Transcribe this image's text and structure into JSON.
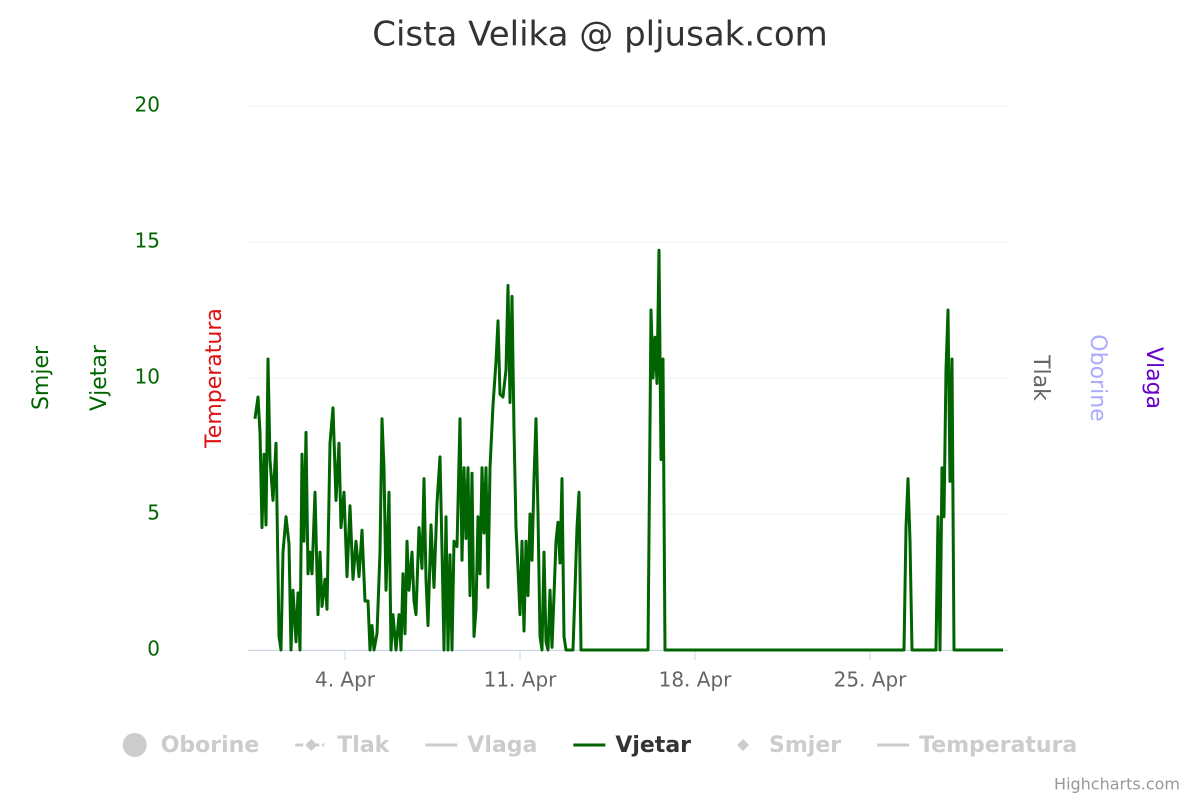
{
  "chart_data": {
    "type": "line",
    "title": "Cista Velika @ pljusak.com",
    "credits": "Highcharts.com",
    "axis_titles": [
      {
        "text": "Smjer",
        "color": "#006400",
        "side": "left"
      },
      {
        "text": "Vjetar",
        "color": "#006400",
        "side": "left"
      },
      {
        "text": "Temperatura",
        "color": "#dd1111",
        "side": "left"
      },
      {
        "text": "Tlak",
        "color": "#666666",
        "side": "right"
      },
      {
        "text": "Oborine",
        "color": "#aaaaff",
        "side": "right"
      },
      {
        "text": "Vlaga",
        "color": "#6600cc",
        "side": "right"
      }
    ],
    "x": [
      0.4,
      0.52,
      0.6,
      0.68,
      0.76,
      0.84,
      0.92,
      1.0,
      1.12,
      1.24,
      1.36,
      1.44,
      1.52,
      1.64,
      1.76,
      1.84,
      1.92,
      2.04,
      2.12,
      2.2,
      2.28,
      2.36,
      2.44,
      2.52,
      2.6,
      2.68,
      2.8,
      2.92,
      3.0,
      3.08,
      3.2,
      3.28,
      3.4,
      3.52,
      3.64,
      3.76,
      3.84,
      3.96,
      4.08,
      4.2,
      4.32,
      4.44,
      4.56,
      4.68,
      4.8,
      4.92,
      5.0,
      5.08,
      5.16,
      5.28,
      5.4,
      5.48,
      5.56,
      5.64,
      5.76,
      5.84,
      5.92,
      6.04,
      6.16,
      6.24,
      6.32,
      6.4,
      6.48,
      6.56,
      6.68,
      6.76,
      6.84,
      6.96,
      7.08,
      7.16,
      7.24,
      7.32,
      7.44,
      7.56,
      7.68,
      7.8,
      7.88,
      7.96,
      8.04,
      8.12,
      8.2,
      8.28,
      8.36,
      8.48,
      8.6,
      8.68,
      8.76,
      8.84,
      8.92,
      9.0,
      9.08,
      9.16,
      9.24,
      9.32,
      9.4,
      9.48,
      9.56,
      9.64,
      9.72,
      9.8,
      9.92,
      10.04,
      10.12,
      10.2,
      10.32,
      10.44,
      10.52,
      10.6,
      10.68,
      10.76,
      10.84,
      10.92,
      11.0,
      11.08,
      11.16,
      11.24,
      11.32,
      11.4,
      11.48,
      11.56,
      11.64,
      11.72,
      11.8,
      11.88,
      11.96,
      12.04,
      12.12,
      12.2,
      12.28,
      12.36,
      12.44,
      12.52,
      12.6,
      12.68,
      12.76,
      12.84,
      12.92,
      13.12,
      13.2,
      13.28,
      13.36,
      13.44,
      13.52,
      16.12,
      16.24,
      16.32,
      16.4,
      16.48,
      16.56,
      16.64,
      16.72,
      16.8,
      16.88,
      26.36,
      26.44,
      26.52,
      26.6,
      26.68,
      26.76,
      27.64,
      27.72,
      27.8,
      27.88,
      27.96,
      28.04,
      28.12,
      28.2,
      28.28,
      28.36,
      30.32
    ],
    "series": [
      {
        "name": "Oborine",
        "color": "#cccccc",
        "visible": false,
        "legend_symbol": "circle"
      },
      {
        "name": "Tlak",
        "color": "#cccccc",
        "visible": false,
        "legend_symbol": "dashdot-diamond"
      },
      {
        "name": "Vlaga",
        "color": "#cccccc",
        "visible": false,
        "legend_symbol": "line"
      },
      {
        "name": "Vjetar",
        "color": "#006400",
        "visible": true,
        "legend_symbol": "line",
        "values": [
          8.5,
          9.3,
          8,
          4.5,
          7.2,
          4.6,
          10.7,
          7,
          5.5,
          7.6,
          0.5,
          0,
          3.6,
          4.9,
          3.9,
          0,
          2.2,
          0.3,
          2.1,
          0,
          7.2,
          4,
          8,
          2.8,
          3.6,
          2.8,
          5.8,
          1.3,
          3.6,
          1.6,
          2.6,
          1.5,
          7.6,
          8.9,
          5.5,
          7.6,
          4.5,
          5.8,
          2.7,
          5.3,
          2.6,
          4,
          2.7,
          4.4,
          1.8,
          1.8,
          0,
          0.9,
          0,
          0.6,
          3.6,
          8.5,
          6.7,
          2.2,
          5.8,
          0,
          1.3,
          0,
          1.3,
          0,
          2.8,
          0.6,
          4,
          2.2,
          3.6,
          1.8,
          1.3,
          4.5,
          3,
          6.3,
          2.6,
          0.9,
          4.6,
          2.3,
          5.4,
          7.1,
          3.7,
          0,
          4.9,
          0,
          3.5,
          0,
          4,
          3.8,
          8.5,
          3.3,
          6.7,
          4.1,
          6.7,
          2,
          6.5,
          0.5,
          1.5,
          4.9,
          2.8,
          6.7,
          4.3,
          6.7,
          2.3,
          6.7,
          9,
          10.6,
          12.1,
          9.4,
          9.3,
          10.3,
          13.4,
          9.1,
          13,
          8.1,
          4.5,
          3,
          1.3,
          4,
          0.7,
          4,
          2,
          5,
          3.3,
          6.3,
          8.5,
          5,
          0.5,
          0,
          3.6,
          0.3,
          0,
          2.2,
          0.1,
          2,
          4,
          4.7,
          3.2,
          6.3,
          0.5,
          0,
          0,
          0,
          2.2,
          4.5,
          5.8,
          0,
          0,
          0,
          12.5,
          10,
          11.5,
          9.8,
          14.7,
          7,
          10.7,
          0,
          0,
          0,
          4.5,
          6.3,
          4,
          0,
          0,
          0,
          4.9,
          0,
          6.7,
          4.9,
          10.3,
          12.5,
          6.2,
          10.7,
          0,
          0
        ]
      },
      {
        "name": "Smjer",
        "color": "#cccccc",
        "visible": false,
        "legend_symbol": "diamond"
      },
      {
        "name": "Temperatura",
        "color": "#cccccc",
        "visible": false,
        "legend_symbol": "line"
      }
    ],
    "xlim": [
      0.12,
      30.52
    ],
    "xticks": [
      {
        "value": 4,
        "label": "4. Apr"
      },
      {
        "value": 11,
        "label": "11. Apr"
      },
      {
        "value": 18,
        "label": "18. Apr"
      },
      {
        "value": 25,
        "label": "25. Apr"
      }
    ],
    "ylim": [
      0,
      20
    ],
    "yticks": [
      0,
      5,
      10,
      15,
      20
    ],
    "ytick_color": "#006400",
    "grid": true
  }
}
